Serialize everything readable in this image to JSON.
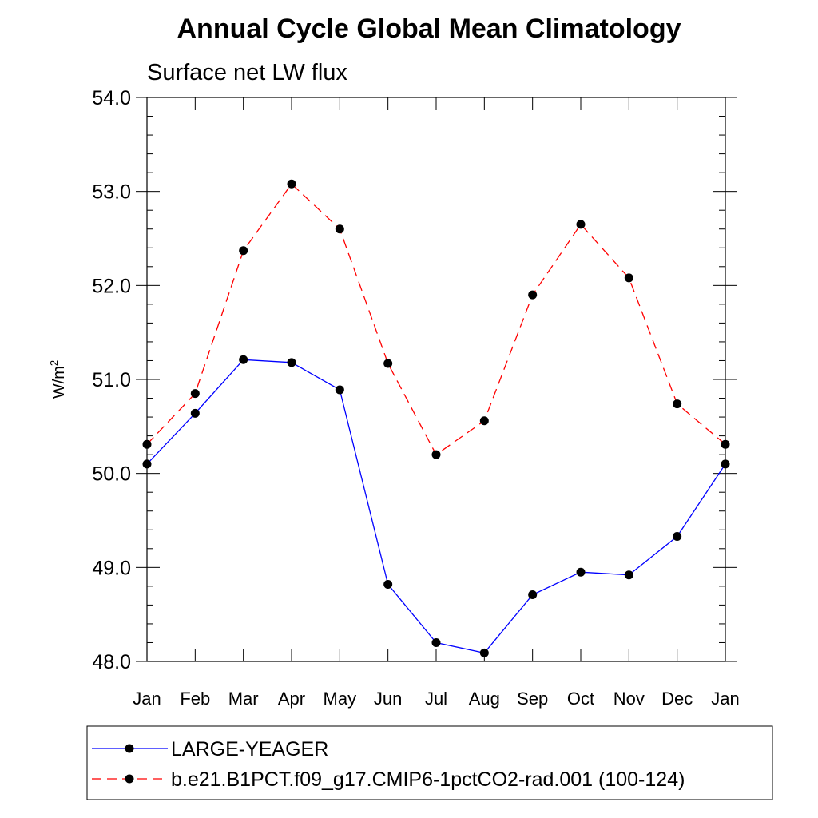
{
  "chart_data": {
    "type": "line",
    "title": "Annual Cycle Global Mean Climatology",
    "subtitle": "Surface net LW flux",
    "ylabel_base": "W/m",
    "ylabel_sup": "2",
    "categories": [
      "Jan",
      "Feb",
      "Mar",
      "Apr",
      "May",
      "Jun",
      "Jul",
      "Aug",
      "Sep",
      "Oct",
      "Nov",
      "Dec",
      "Jan"
    ],
    "ylim": [
      48.0,
      54.0
    ],
    "yticks": [
      "48.0",
      "49.0",
      "50.0",
      "51.0",
      "52.0",
      "53.0",
      "54.0"
    ],
    "grid": false,
    "legend_position": "bottom",
    "series": [
      {
        "name": "LARGE-YEAGER",
        "color": "#0000ff",
        "dash": "solid",
        "values": [
          50.1,
          50.64,
          51.21,
          51.18,
          50.89,
          48.82,
          48.2,
          48.09,
          48.71,
          48.95,
          48.92,
          49.33,
          50.1
        ]
      },
      {
        "name": "b.e21.B1PCT.f09_g17.CMIP6-1pctCO2-rad.001 (100-124)",
        "color": "#ff0000",
        "dash": "dashed",
        "values": [
          50.31,
          50.85,
          52.37,
          53.08,
          52.6,
          51.17,
          50.2,
          50.56,
          51.9,
          52.65,
          52.08,
          50.74,
          50.31
        ]
      }
    ]
  }
}
